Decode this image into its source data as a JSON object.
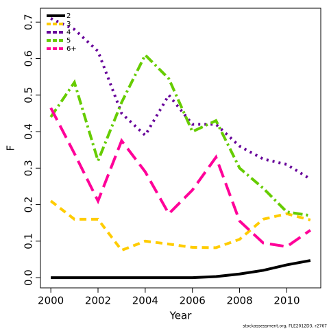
{
  "chart_data": {
    "type": "line",
    "xlabel": "Year",
    "ylabel": "F",
    "footnote": "stockassessment.org, FLE2012D3, r2767",
    "x": [
      2000,
      2001,
      2002,
      2003,
      2004,
      2005,
      2006,
      2007,
      2008,
      2009,
      2010,
      2011
    ],
    "series": [
      {
        "name": "2",
        "color": "#000000",
        "line_style": "solid",
        "values": [
          0,
          0,
          0,
          0,
          0,
          0,
          0,
          0.003,
          0.01,
          0.02,
          0.035,
          0.047
        ]
      },
      {
        "name": "3",
        "color": "#FFCC00",
        "line_style": "dashed",
        "values": [
          0.21,
          0.16,
          0.16,
          0.075,
          0.1,
          0.092,
          0.083,
          0.082,
          0.105,
          0.16,
          0.175,
          0.158
        ]
      },
      {
        "name": "4",
        "color": "#660099",
        "line_style": "dotted",
        "values": [
          0.71,
          0.68,
          0.62,
          0.45,
          0.39,
          0.5,
          0.42,
          0.42,
          0.36,
          0.325,
          0.31,
          0.27
        ]
      },
      {
        "name": "5",
        "color": "#66CC00",
        "line_style": "dotdash",
        "values": [
          0.44,
          0.535,
          0.32,
          0.48,
          0.61,
          0.545,
          0.4,
          0.43,
          0.3,
          0.245,
          0.18,
          0.17
        ]
      },
      {
        "name": "6+",
        "color": "#FF0099",
        "line_style": "longdash",
        "values": [
          0.465,
          0.34,
          0.21,
          0.375,
          0.29,
          0.175,
          0.24,
          0.33,
          0.155,
          0.095,
          0.085,
          0.13
        ]
      }
    ],
    "xlim": [
      1999.56,
      2011.44
    ],
    "ylim": [
      -0.028,
      0.738
    ],
    "xticks": [
      2000,
      2002,
      2004,
      2006,
      2008,
      2010
    ],
    "yticks": [
      {
        "value": 0,
        "label": "0.0"
      },
      0.1,
      0.2,
      0.3,
      0.4,
      0.5,
      0.6,
      0.7
    ],
    "legend": "top-left"
  }
}
